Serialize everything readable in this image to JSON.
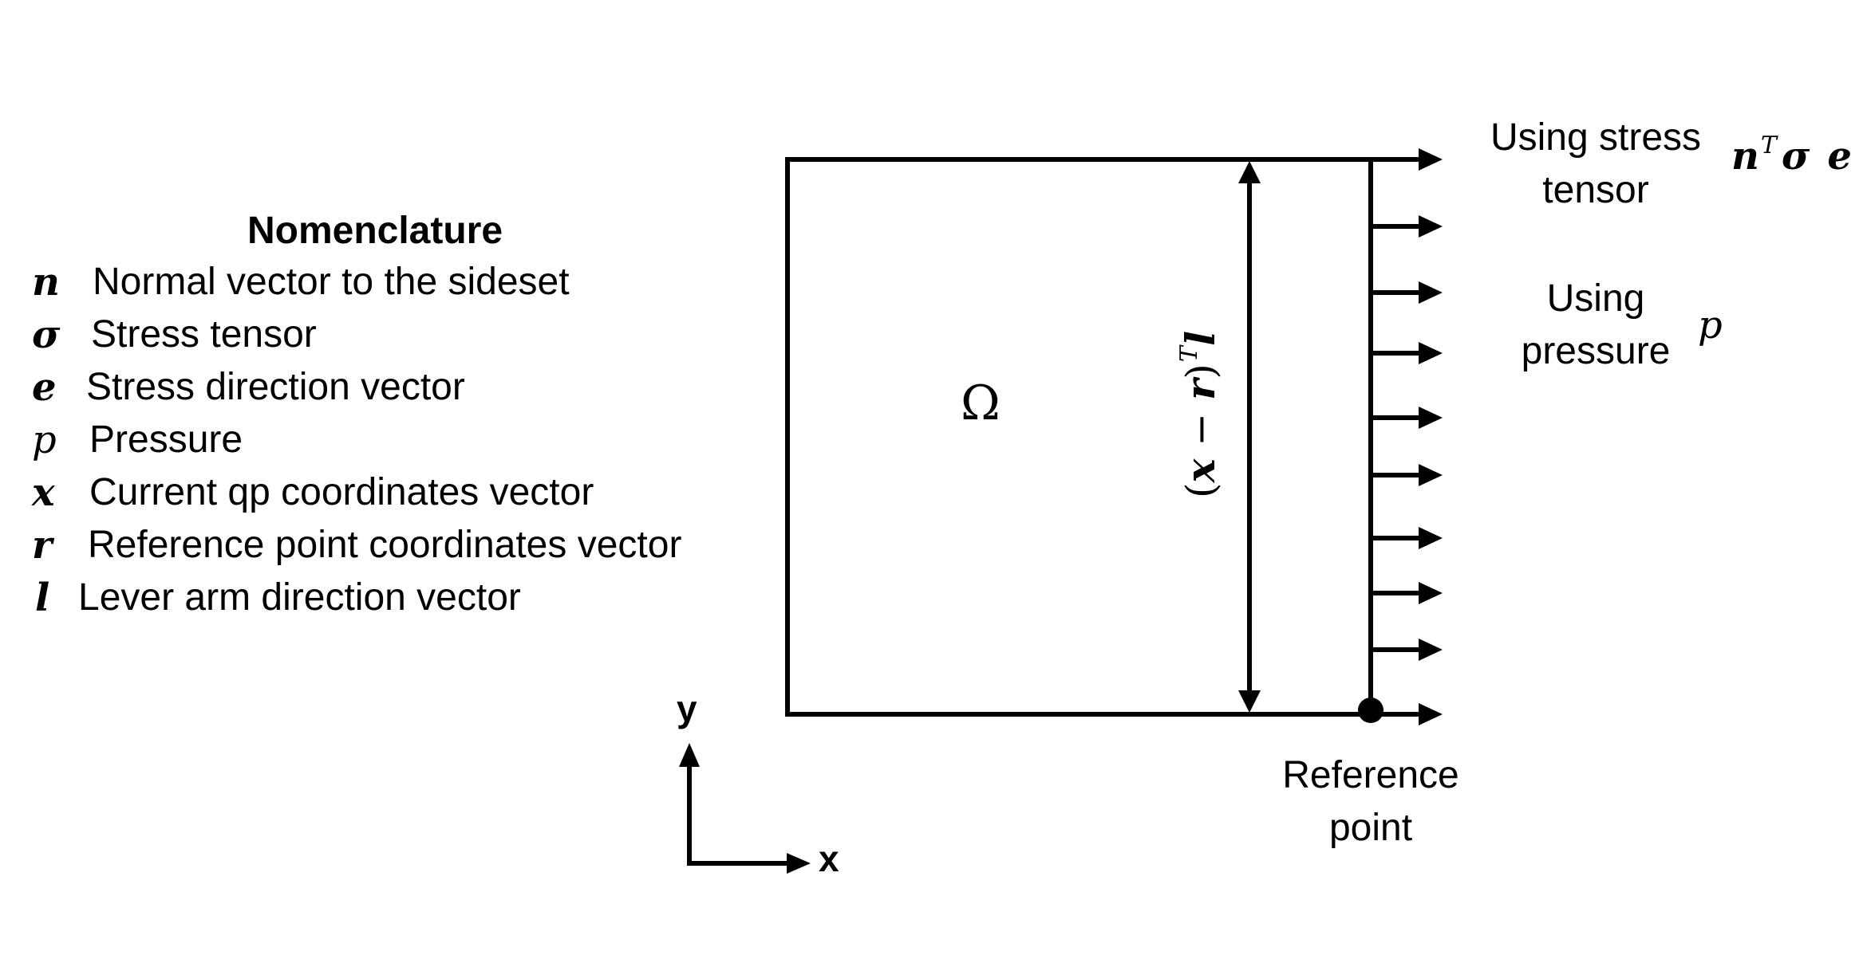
{
  "nomenclature": {
    "title": "Nomenclature",
    "items": [
      {
        "symbol": "n",
        "label": "Normal vector to the sideset"
      },
      {
        "symbol": "σ",
        "label": "Stress tensor"
      },
      {
        "symbol": "e",
        "label": "Stress direction vector"
      },
      {
        "symbol": "p",
        "label": "Pressure"
      },
      {
        "symbol": "x",
        "label": "Current qp coordinates vector"
      },
      {
        "symbol": "r",
        "label": "Reference point coordinates vector"
      },
      {
        "symbol": "l",
        "label": "Lever arm direction vector"
      }
    ]
  },
  "domain": {
    "label": "Ω"
  },
  "lever_expr": {
    "open": "(",
    "x": "x",
    "minus": " − ",
    "r": "r",
    "close": ")",
    "T": "T",
    "l": "l"
  },
  "stress_note": {
    "line1": "Using stress",
    "line2": "tensor",
    "n": "n",
    "T": "T",
    "sigma": "σ",
    "e": "e"
  },
  "pressure_note": {
    "line1": "Using",
    "line2": "pressure",
    "p": "p"
  },
  "reference": {
    "line1": "Reference",
    "line2": "point"
  },
  "axes": {
    "x_label": "x",
    "y_label": "y"
  }
}
